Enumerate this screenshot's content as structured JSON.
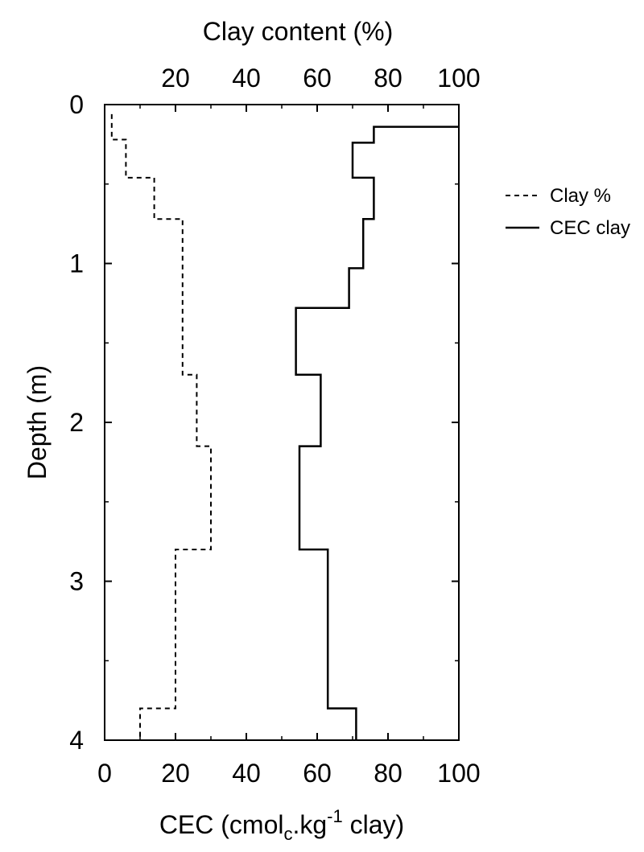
{
  "chart_data": {
    "type": "line",
    "orientation": "depth-profile",
    "top_axis": {
      "label": "Clay content (%)",
      "range": [
        0,
        100
      ],
      "ticks": [
        20,
        40,
        60,
        80,
        100
      ]
    },
    "bottom_axis": {
      "label_parts": {
        "a": "CEC (cmol",
        "sub": "c",
        "b": ".kg",
        "sup": "-1",
        "c": " clay)"
      },
      "range": [
        0,
        100
      ],
      "ticks": [
        0,
        20,
        40,
        60,
        80,
        100
      ]
    },
    "y_axis": {
      "label": "Depth (m)",
      "range": [
        0,
        4
      ],
      "inverted": true,
      "ticks": [
        0,
        1,
        2,
        3,
        4
      ]
    },
    "legend": {
      "placement": "right",
      "items": [
        {
          "label": "Clay %",
          "style": "dashed"
        },
        {
          "label": "CEC clay",
          "style": "solid"
        }
      ]
    },
    "series": [
      {
        "name": "Clay %",
        "axis": "top",
        "style": "dashed",
        "color": "#000000",
        "steps": [
          {
            "depth_top": 0.06,
            "depth_bottom": 0.22,
            "value": 2
          },
          {
            "depth_top": 0.22,
            "depth_bottom": 0.46,
            "value": 6
          },
          {
            "depth_top": 0.46,
            "depth_bottom": 0.72,
            "value": 14
          },
          {
            "depth_top": 0.72,
            "depth_bottom": 1.7,
            "value": 22
          },
          {
            "depth_top": 1.7,
            "depth_bottom": 2.15,
            "value": 26
          },
          {
            "depth_top": 2.15,
            "depth_bottom": 2.8,
            "value": 30
          },
          {
            "depth_top": 2.8,
            "depth_bottom": 3.8,
            "value": 20
          },
          {
            "depth_top": 3.8,
            "depth_bottom": 4.0,
            "value": 10
          }
        ]
      },
      {
        "name": "CEC clay",
        "axis": "bottom",
        "style": "solid",
        "color": "#000000",
        "steps": [
          {
            "depth_top": 0.14,
            "depth_bottom": 0.24,
            "value": 76
          },
          {
            "depth_top": 0.24,
            "depth_bottom": 0.46,
            "value": 70
          },
          {
            "depth_top": 0.46,
            "depth_bottom": 0.72,
            "value": 76
          },
          {
            "depth_top": 0.72,
            "depth_bottom": 1.03,
            "value": 73
          },
          {
            "depth_top": 1.03,
            "depth_bottom": 1.28,
            "value": 69
          },
          {
            "depth_top": 1.28,
            "depth_bottom": 1.7,
            "value": 54
          },
          {
            "depth_top": 1.7,
            "depth_bottom": 2.15,
            "value": 61
          },
          {
            "depth_top": 2.15,
            "depth_bottom": 2.8,
            "value": 55
          },
          {
            "depth_top": 2.8,
            "depth_bottom": 3.8,
            "value": 63
          },
          {
            "depth_top": 3.8,
            "depth_bottom": 4.0,
            "value": 71
          }
        ]
      }
    ]
  }
}
